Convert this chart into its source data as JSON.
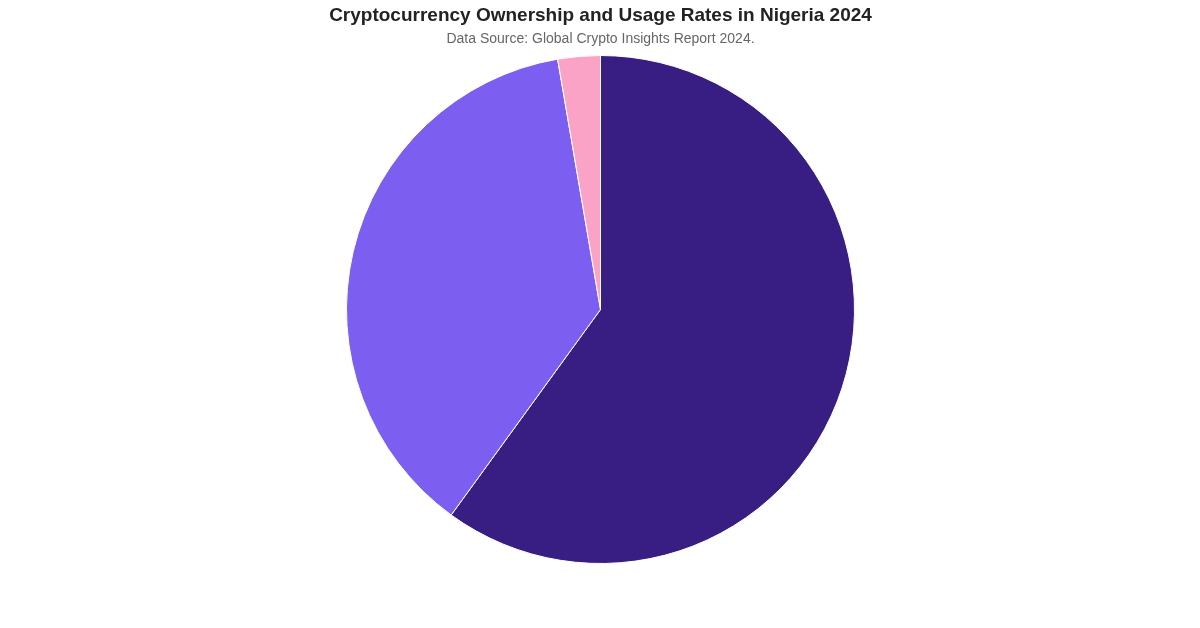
{
  "chart_data": {
    "type": "pie",
    "title": "Cryptocurrency Ownership and Usage Rates in Nigeria 2024",
    "subtitle": "Data Source: Global Crypto Insights Report 2024.",
    "categories": [
      null,
      null,
      null
    ],
    "values": [
      60,
      37.3,
      2.7
    ],
    "colors": [
      "#381d82",
      "#7c5ff0",
      "#fba3c6"
    ]
  }
}
